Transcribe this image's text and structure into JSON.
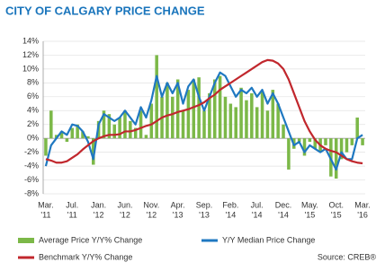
{
  "chart_data": {
    "type": "bar_line",
    "title": "CITY OF CALGARY PRICE CHANGE",
    "source": "Source: CREB®",
    "categories": [
      "Mar.",
      null,
      null,
      null,
      null,
      "Jul.",
      null,
      null,
      null,
      null,
      "Jan.",
      null,
      null,
      null,
      null,
      "Jun.",
      null,
      null,
      null,
      null,
      "Nov.",
      null,
      null,
      null,
      null,
      "Apr.",
      null,
      null,
      null,
      null,
      "Sep.",
      null,
      null,
      null,
      null,
      "Feb.",
      null,
      null,
      null,
      null,
      "Jul.",
      null,
      null,
      null,
      null,
      "Dec.",
      null,
      null,
      null,
      null,
      "May.",
      null,
      null,
      null,
      null,
      "Oct.",
      null,
      null,
      null,
      null,
      "Mar."
    ],
    "category_years": [
      "'11",
      null,
      null,
      null,
      null,
      "'11",
      null,
      null,
      null,
      null,
      "'12",
      null,
      null,
      null,
      null,
      "'12",
      null,
      null,
      null,
      null,
      "'12",
      null,
      null,
      null,
      null,
      "'13",
      null,
      null,
      null,
      null,
      "'13",
      null,
      null,
      null,
      null,
      "'14",
      null,
      null,
      null,
      null,
      "'14",
      null,
      null,
      null,
      null,
      "'14",
      null,
      null,
      null,
      null,
      "'15",
      null,
      null,
      null,
      null,
      "'15",
      null,
      null,
      null,
      null,
      "'16"
    ],
    "series": [
      {
        "name": "Average Price Y/Y% Change",
        "kind": "bar",
        "color": "#7cb848",
        "values": [
          -2.5,
          4,
          0.5,
          1,
          -0.5,
          1.5,
          2,
          1,
          0.3,
          -3.8,
          2.5,
          4,
          3.5,
          2,
          3,
          4,
          2.5,
          1.5,
          4,
          0.5,
          5,
          12,
          6,
          8,
          6,
          8.5,
          4,
          7,
          8.5,
          8.8,
          4,
          6.5,
          8.5,
          9,
          6,
          5,
          4.5,
          7.3,
          5.5,
          6.5,
          4.5,
          6.8,
          4,
          7,
          5,
          2,
          -4.5,
          -1.5,
          -0.5,
          -2.5,
          -0.5,
          -1.5,
          -2,
          -1,
          -5.5,
          -5.8,
          -3,
          -2,
          -1,
          3,
          -1
        ]
      },
      {
        "name": "Y/Y Median Price Change",
        "kind": "line",
        "color": "#1f78c1",
        "values": [
          -4,
          -1,
          0,
          1,
          0.5,
          2,
          1.8,
          1,
          -0.5,
          -3,
          2,
          3.5,
          3,
          2.5,
          3,
          4,
          3,
          2,
          4.5,
          3,
          5.5,
          9,
          6,
          8,
          6.5,
          8,
          5,
          7.5,
          8.5,
          6,
          4,
          6,
          8,
          9.5,
          9,
          7.5,
          6,
          7,
          6.5,
          7.3,
          6,
          7,
          5,
          6.5,
          5,
          3,
          1,
          -1,
          -0.5,
          -2,
          -1,
          -1.5,
          -2,
          -1.5,
          -3,
          -4.5,
          -2,
          -3,
          -3,
          0,
          0.5
        ]
      },
      {
        "name": "Benchmark Y/Y% Change",
        "kind": "line",
        "color": "#c1272d",
        "values": [
          -3,
          -3.2,
          -3.5,
          -3.5,
          -3.3,
          -2.8,
          -2.3,
          -1.6,
          -1,
          -0.4,
          0,
          0.3,
          0.5,
          0.5,
          0.6,
          1,
          1,
          1.2,
          1.5,
          1.8,
          2,
          2.5,
          3,
          3.3,
          3.5,
          3.8,
          4,
          4.2,
          4.5,
          4.8,
          5.2,
          5.8,
          6.3,
          7,
          7.5,
          8,
          8.5,
          9,
          9.5,
          10,
          10.5,
          11,
          11.3,
          11.2,
          10.8,
          10,
          8.5,
          6.5,
          4.5,
          2.5,
          1,
          -0.2,
          -1,
          -1.5,
          -1.8,
          -2,
          -2.5,
          -3,
          -3.3,
          -3.5,
          -3.6
        ]
      }
    ],
    "ylim": [
      -8,
      14
    ],
    "yticks": [
      {
        "value": -8,
        "label": "-8%"
      },
      {
        "value": -6,
        "label": "-6%"
      },
      {
        "value": -4,
        "label": "-4%"
      },
      {
        "value": -2,
        "label": "-2%"
      },
      {
        "value": 0,
        "label": "0%"
      },
      {
        "value": 2,
        "label": "2%"
      },
      {
        "value": 4,
        "label": "4%"
      },
      {
        "value": 6,
        "label": "6%"
      },
      {
        "value": 8,
        "label": "8%"
      },
      {
        "value": 10,
        "label": "10%"
      },
      {
        "value": 12,
        "label": "12%"
      },
      {
        "value": 14,
        "label": "14%"
      }
    ],
    "grid": true,
    "legend": "bottom"
  }
}
